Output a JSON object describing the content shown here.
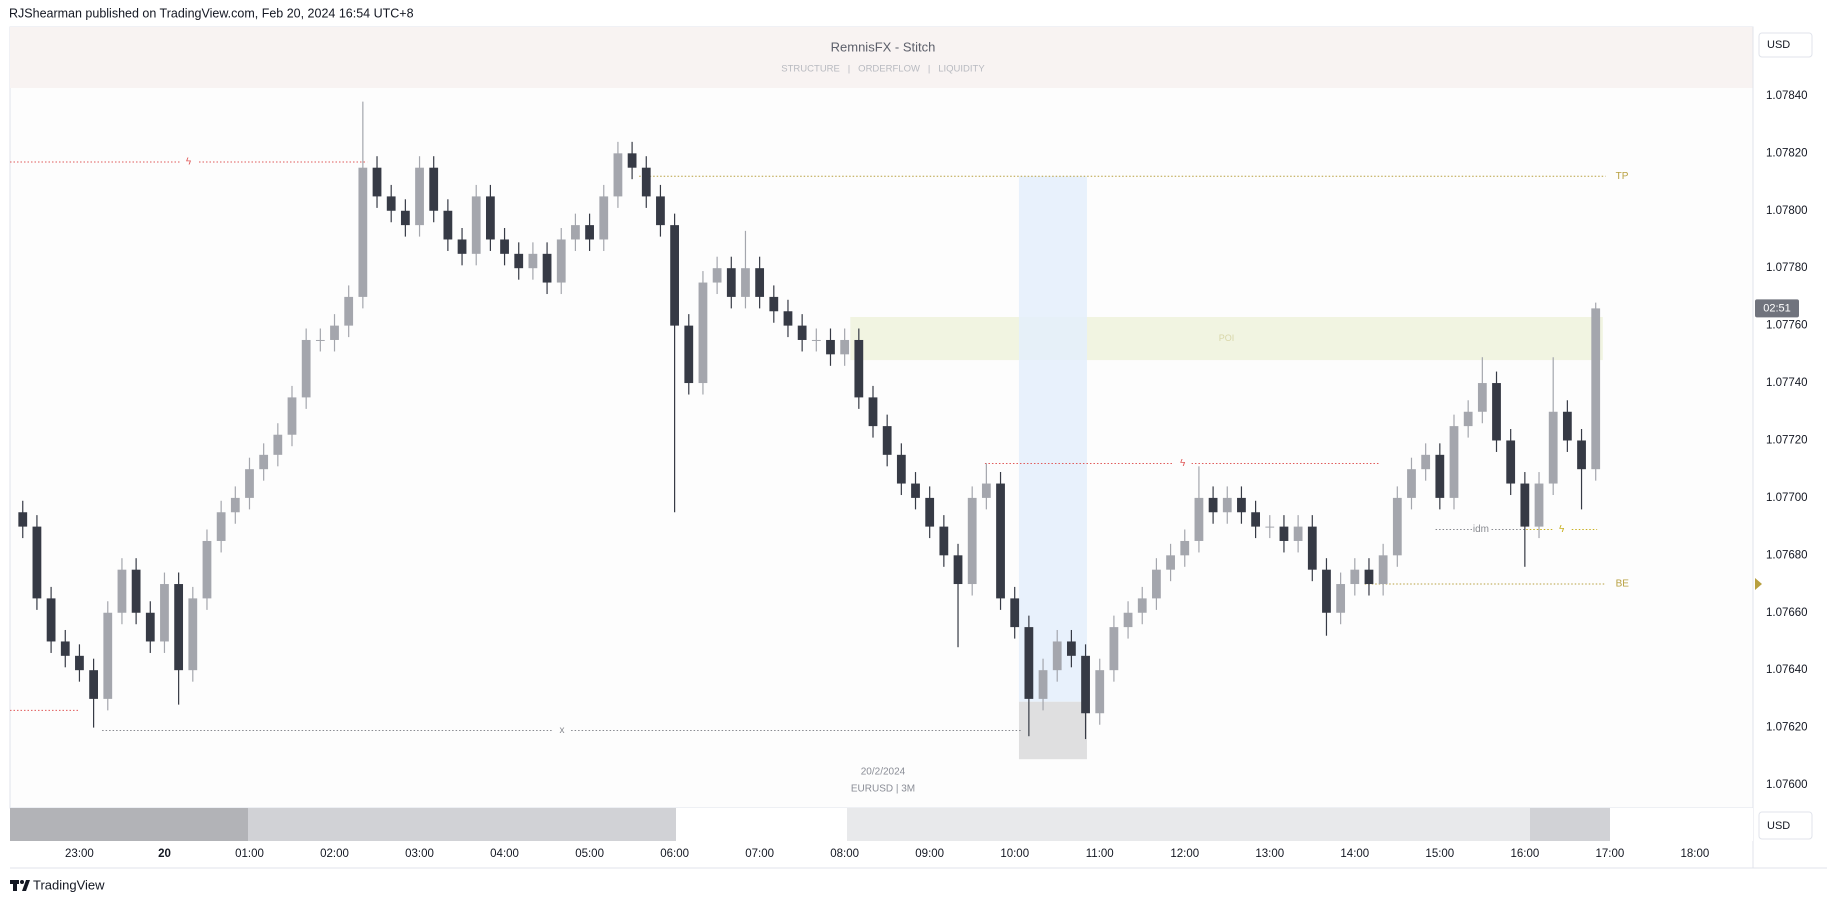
{
  "header": {
    "publisher": "RJShearman published on TradingView.com, Feb 20, 2024 16:54 UTC+8"
  },
  "footer": {
    "brand": "TradingView"
  },
  "chart_data": {
    "type": "candlestick",
    "title": "RemnisFX - Stitch",
    "subtitle": "STRUCTURE   |   ORDERFLOW   |   LIQUIDITY",
    "date_label": "20/2/2024",
    "symbol_label": "EURUSD | 3M",
    "currency": "USD",
    "countdown": "02:51",
    "up_color": "#a4a6ad",
    "down_color": "#363a45",
    "grid": false,
    "x": [
      -100,
      -90,
      -80,
      -70,
      -60,
      -50,
      -40,
      -30,
      -20,
      -10,
      0,
      10,
      20,
      30,
      40,
      50,
      60,
      70,
      80,
      90,
      100,
      110,
      120,
      130,
      140,
      150,
      160,
      170,
      180,
      190,
      200,
      210,
      220,
      230,
      240,
      250,
      260,
      270,
      280,
      290,
      300,
      310,
      320,
      330,
      340,
      350,
      360,
      370,
      380,
      390,
      400,
      410,
      420,
      430,
      440,
      450,
      460,
      470,
      480,
      490,
      500,
      510,
      520,
      530,
      540,
      550,
      560,
      570,
      580,
      590,
      600,
      610,
      620,
      630,
      640,
      650,
      660,
      670,
      680,
      690,
      700,
      710,
      720,
      730,
      740,
      750,
      760,
      770,
      780,
      790,
      800,
      810,
      820,
      830,
      840,
      850,
      860,
      870,
      880,
      890,
      900,
      910,
      920,
      930,
      940,
      950,
      960,
      970,
      980,
      990,
      1000,
      1010
    ],
    "open": [
      1.07695,
      1.0769,
      1.07665,
      1.0765,
      1.07645,
      1.0764,
      1.0763,
      1.0766,
      1.07675,
      1.0766,
      1.0765,
      1.0767,
      1.0764,
      1.07665,
      1.07685,
      1.07695,
      1.077,
      1.0771,
      1.07715,
      1.07722,
      1.07735,
      1.07755,
      1.07755,
      1.0776,
      1.0777,
      1.07815,
      1.07805,
      1.078,
      1.07795,
      1.07815,
      1.078,
      1.0779,
      1.07785,
      1.07805,
      1.0779,
      1.07785,
      1.0778,
      1.07785,
      1.07775,
      1.0779,
      1.07795,
      1.0779,
      1.07805,
      1.0782,
      1.07815,
      1.07805,
      1.07795,
      1.0776,
      1.0774,
      1.07775,
      1.0778,
      1.0777,
      1.0778,
      1.0777,
      1.07765,
      1.0776,
      1.07755,
      1.07755,
      1.0775,
      1.07755,
      1.07735,
      1.07725,
      1.07715,
      1.07705,
      1.077,
      1.0769,
      1.0768,
      1.0767,
      1.077,
      1.07705,
      1.07665,
      1.07655,
      1.0763,
      1.0764,
      1.0765,
      1.07645,
      1.07625,
      1.0764,
      1.07655,
      1.0766,
      1.07665,
      1.07675,
      1.0768,
      1.07685,
      1.077,
      1.07695,
      1.077,
      1.07695,
      1.0769,
      1.0769,
      1.07685,
      1.0769,
      1.07675,
      1.0766,
      1.0767,
      1.07675,
      1.0767,
      1.0768,
      1.077,
      1.0771,
      1.07715,
      1.077,
      1.07725,
      1.0773,
      1.0774,
      1.0772,
      1.07705,
      1.0769,
      1.07705,
      1.0773,
      1.0772,
      1.0771
    ],
    "high": [
      1.07699,
      1.07694,
      1.07669,
      1.07654,
      1.07649,
      1.07644,
      1.07664,
      1.07679,
      1.07679,
      1.07664,
      1.07674,
      1.07674,
      1.07669,
      1.07689,
      1.07699,
      1.07704,
      1.07714,
      1.07719,
      1.07726,
      1.07739,
      1.07759,
      1.07759,
      1.07764,
      1.07774,
      1.07838,
      1.07819,
      1.07809,
      1.07804,
      1.07819,
      1.07819,
      1.07804,
      1.07794,
      1.07809,
      1.07809,
      1.07794,
      1.07789,
      1.07789,
      1.07789,
      1.07794,
      1.07799,
      1.07799,
      1.07809,
      1.07824,
      1.07824,
      1.07819,
      1.07809,
      1.07799,
      1.07764,
      1.07779,
      1.07784,
      1.07784,
      1.07793,
      1.07784,
      1.07774,
      1.07769,
      1.07764,
      1.07759,
      1.07759,
      1.07759,
      1.07759,
      1.07739,
      1.07729,
      1.07719,
      1.07709,
      1.07704,
      1.07694,
      1.07684,
      1.07704,
      1.07712,
      1.07709,
      1.07669,
      1.07659,
      1.07644,
      1.07654,
      1.07654,
      1.07649,
      1.07644,
      1.07659,
      1.07664,
      1.07669,
      1.07679,
      1.07684,
      1.07689,
      1.07711,
      1.07704,
      1.07704,
      1.07704,
      1.07699,
      1.07694,
      1.07694,
      1.07694,
      1.07694,
      1.07679,
      1.07674,
      1.07679,
      1.07679,
      1.07684,
      1.07704,
      1.07714,
      1.07719,
      1.07719,
      1.07729,
      1.07734,
      1.07749,
      1.07744,
      1.07724,
      1.07709,
      1.07709,
      1.07749,
      1.07734,
      1.07724,
      1.07768
    ],
    "low": [
      1.07686,
      1.07661,
      1.07646,
      1.07641,
      1.07636,
      1.0762,
      1.07626,
      1.07656,
      1.07656,
      1.07646,
      1.07646,
      1.07628,
      1.07636,
      1.07661,
      1.07681,
      1.07691,
      1.07696,
      1.07706,
      1.07711,
      1.07718,
      1.07731,
      1.07751,
      1.07751,
      1.07756,
      1.07766,
      1.07801,
      1.07796,
      1.07791,
      1.07791,
      1.07796,
      1.07786,
      1.07781,
      1.07781,
      1.07786,
      1.07781,
      1.07776,
      1.07776,
      1.07771,
      1.07771,
      1.07786,
      1.07786,
      1.07786,
      1.07801,
      1.07811,
      1.07801,
      1.07791,
      1.07695,
      1.07736,
      1.07736,
      1.07771,
      1.07766,
      1.07766,
      1.07766,
      1.07761,
      1.07756,
      1.07751,
      1.07751,
      1.07746,
      1.07746,
      1.07731,
      1.07721,
      1.07711,
      1.07701,
      1.07696,
      1.07686,
      1.07676,
      1.07648,
      1.07666,
      1.07696,
      1.07661,
      1.07651,
      1.07617,
      1.07626,
      1.07636,
      1.07641,
      1.07616,
      1.07621,
      1.07636,
      1.07651,
      1.07656,
      1.07661,
      1.07671,
      1.07676,
      1.07681,
      1.07691,
      1.07691,
      1.07691,
      1.07686,
      1.07686,
      1.07681,
      1.07681,
      1.07671,
      1.07652,
      1.07656,
      1.07666,
      1.07666,
      1.07666,
      1.07676,
      1.07696,
      1.07706,
      1.07696,
      1.07696,
      1.07721,
      1.07726,
      1.07716,
      1.07701,
      1.07676,
      1.07686,
      1.07701,
      1.07716,
      1.07696,
      1.07706
    ],
    "close": [
      1.0769,
      1.07665,
      1.0765,
      1.07645,
      1.0764,
      1.0763,
      1.0766,
      1.07675,
      1.0766,
      1.0765,
      1.0767,
      1.0764,
      1.07665,
      1.07685,
      1.07695,
      1.077,
      1.0771,
      1.07715,
      1.07722,
      1.07735,
      1.07755,
      1.07755,
      1.0776,
      1.0777,
      1.07815,
      1.07805,
      1.078,
      1.07795,
      1.07815,
      1.078,
      1.0779,
      1.07785,
      1.07805,
      1.0779,
      1.07785,
      1.0778,
      1.07785,
      1.07775,
      1.0779,
      1.07795,
      1.0779,
      1.07805,
      1.0782,
      1.07815,
      1.07805,
      1.07795,
      1.0776,
      1.0774,
      1.07775,
      1.0778,
      1.0777,
      1.0778,
      1.0777,
      1.07765,
      1.0776,
      1.07755,
      1.07755,
      1.0775,
      1.07755,
      1.07735,
      1.07725,
      1.07715,
      1.07705,
      1.077,
      1.0769,
      1.0768,
      1.0767,
      1.077,
      1.07705,
      1.07665,
      1.07655,
      1.0763,
      1.0764,
      1.0765,
      1.07645,
      1.07625,
      1.0764,
      1.07655,
      1.0766,
      1.07665,
      1.07675,
      1.0768,
      1.07685,
      1.077,
      1.07695,
      1.077,
      1.07695,
      1.0769,
      1.0769,
      1.07685,
      1.0769,
      1.07675,
      1.0766,
      1.0767,
      1.07675,
      1.0767,
      1.0768,
      1.077,
      1.0771,
      1.07715,
      1.077,
      1.07725,
      1.0773,
      1.0774,
      1.0772,
      1.07705,
      1.0769,
      1.07705,
      1.0773,
      1.0772,
      1.0771,
      1.07766
    ],
    "xlim": [
      -109,
      1121
    ],
    "xticks": [
      {
        "value": -60,
        "label": "23:00"
      },
      {
        "value": 0,
        "label": "20"
      },
      {
        "value": 60,
        "label": "01:00"
      },
      {
        "value": 120,
        "label": "02:00"
      },
      {
        "value": 180,
        "label": "03:00"
      },
      {
        "value": 240,
        "label": "04:00"
      },
      {
        "value": 300,
        "label": "05:00"
      },
      {
        "value": 360,
        "label": "06:00"
      },
      {
        "value": 420,
        "label": "07:00"
      },
      {
        "value": 480,
        "label": "08:00"
      },
      {
        "value": 540,
        "label": "09:00"
      },
      {
        "value": 600,
        "label": "10:00"
      },
      {
        "value": 660,
        "label": "11:00"
      },
      {
        "value": 720,
        "label": "12:00"
      },
      {
        "value": 780,
        "label": "13:00"
      },
      {
        "value": 840,
        "label": "14:00"
      },
      {
        "value": 900,
        "label": "15:00"
      },
      {
        "value": 960,
        "label": "16:00"
      },
      {
        "value": 1020,
        "label": "17:00"
      },
      {
        "value": 1080,
        "label": "18:00"
      }
    ],
    "ylim": [
      1.07592,
      1.07864
    ],
    "yticks": [
      {
        "value": 1.076,
        "label": "1.07600"
      },
      {
        "value": 1.0762,
        "label": "1.07620"
      },
      {
        "value": 1.0764,
        "label": "1.07640"
      },
      {
        "value": 1.0766,
        "label": "1.07660"
      },
      {
        "value": 1.0768,
        "label": "1.07680"
      },
      {
        "value": 1.077,
        "label": "1.07700"
      },
      {
        "value": 1.0772,
        "label": "1.07720"
      },
      {
        "value": 1.0774,
        "label": "1.07740"
      },
      {
        "value": 1.0776,
        "label": "1.07760"
      },
      {
        "value": 1.0778,
        "label": "1.07780"
      },
      {
        "value": 1.078,
        "label": "1.07800"
      },
      {
        "value": 1.0782,
        "label": "1.07820"
      },
      {
        "value": 1.0784,
        "label": "1.07840"
      }
    ],
    "levels": [
      {
        "label": "ϟ",
        "price": 1.07817,
        "start": -109,
        "end": 143,
        "color": "#e05a5a",
        "label_position": "middle"
      },
      {
        "label": "TP",
        "price": 1.07812,
        "start": 335,
        "end": 1017,
        "color": "#b8a040",
        "label_position": "end"
      },
      {
        "label": "ϟ",
        "price": 1.07712,
        "start": 579,
        "end": 858,
        "color": "#e05a5a",
        "label_position": "middle"
      },
      {
        "label": "x",
        "price": 1.07619,
        "start": -44,
        "end": 605,
        "color": "#888a90",
        "label_position": "middle"
      },
      {
        "label": "idm",
        "price": 1.07689,
        "start": 897,
        "end": 961,
        "color": "#888a90",
        "label_position": "middle"
      },
      {
        "label": "ϟ",
        "price": 1.07689,
        "start": 961,
        "end": 1011,
        "color": "#c8b020",
        "label_position": "middle"
      },
      {
        "label": "BE",
        "price": 1.0767,
        "start": 847,
        "end": 1017,
        "color": "#b8a040",
        "label_position": "end",
        "axis_marker": true
      },
      {
        "price": 1.07626,
        "start": -109,
        "end": -60,
        "color": "#e05a5a"
      }
    ],
    "zones": [
      {
        "label": "POI",
        "top": 1.07763,
        "bottom": 1.07748,
        "start": 484,
        "end": 1015,
        "color": "#eef2dc"
      },
      {
        "top": 1.07812,
        "bottom": 1.07629,
        "start": 603,
        "end": 651,
        "color": "#e4eefb"
      },
      {
        "top": 1.07629,
        "bottom": 1.07609,
        "start": 603,
        "end": 651,
        "color": "#d9d9db"
      }
    ]
  }
}
